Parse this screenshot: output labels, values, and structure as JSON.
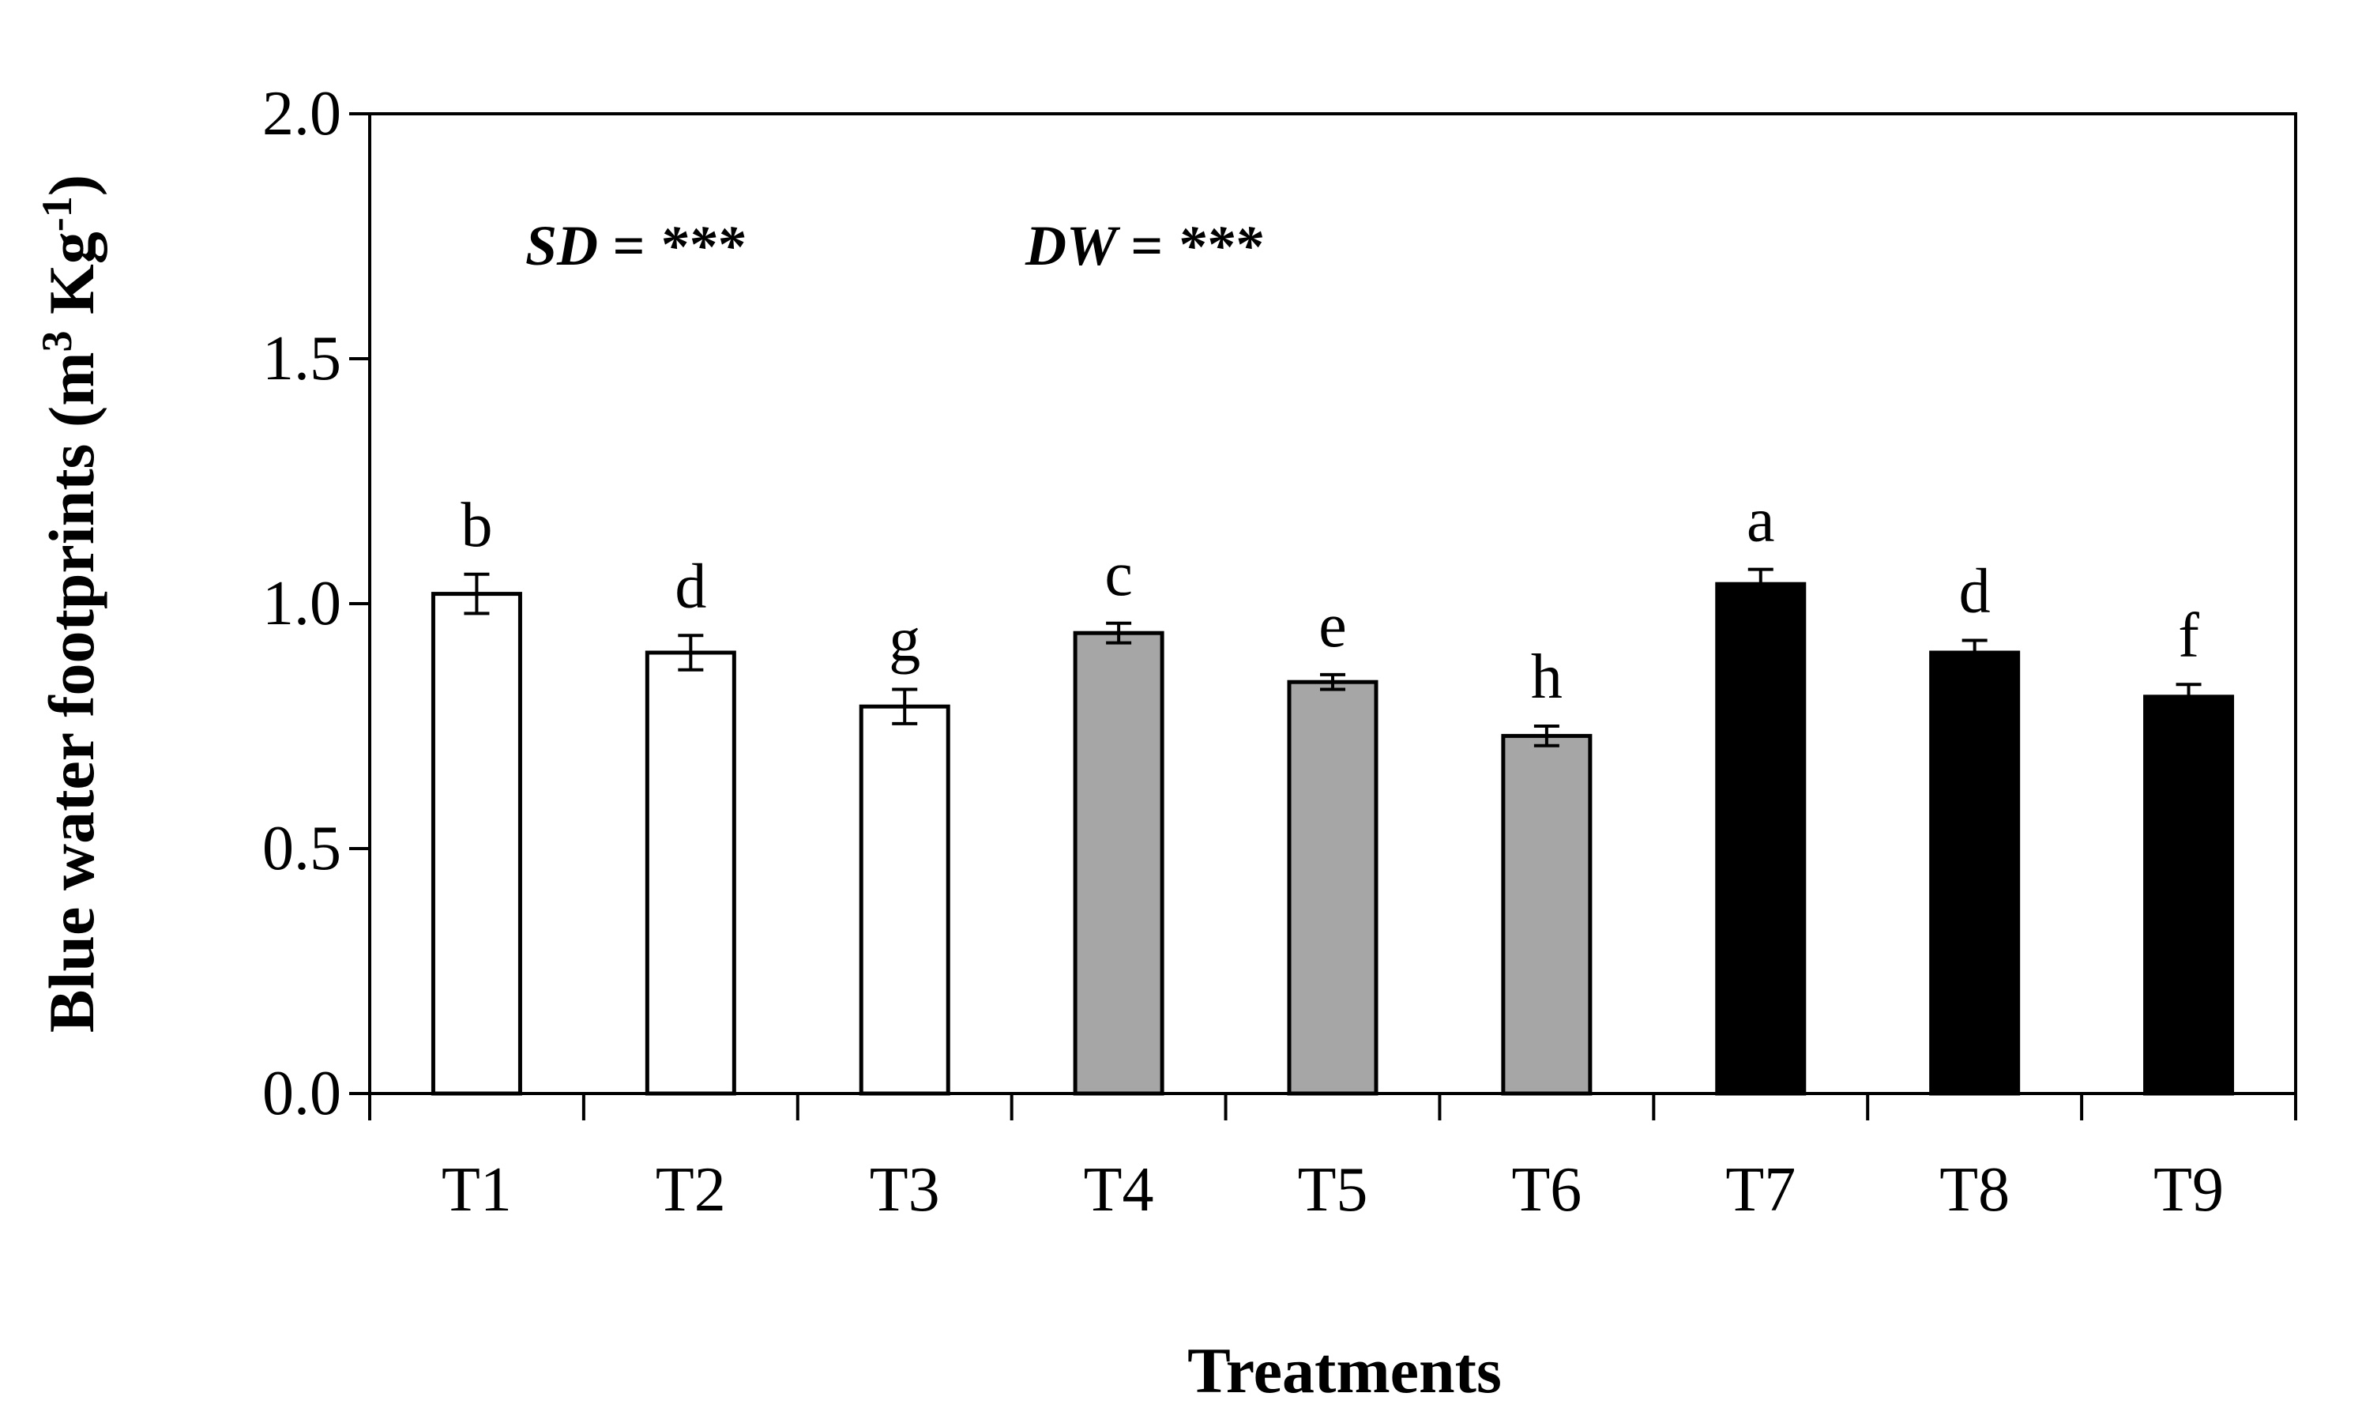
{
  "chart_data": {
    "type": "bar",
    "title": "",
    "xlabel": "Treatments",
    "ylabel": {
      "main": "Blue water footprints (m",
      "sup1": "3",
      "mid": " Kg",
      "sup2": "-1",
      "end": ")"
    },
    "ylim": [
      0,
      2.0
    ],
    "yticks": [
      "0.0",
      "0.5",
      "1.0",
      "1.5",
      "2.0"
    ],
    "ytick_values": [
      0,
      0.5,
      1.0,
      1.5,
      2.0
    ],
    "grid": false,
    "categories": [
      "T1",
      "T2",
      "T3",
      "T4",
      "T5",
      "T6",
      "T7",
      "T8",
      "T9"
    ],
    "values": [
      1.02,
      0.9,
      0.79,
      0.94,
      0.84,
      0.73,
      1.04,
      0.9,
      0.81
    ],
    "errors": [
      0.04,
      0.035,
      0.035,
      0.02,
      0.015,
      0.02,
      0.03,
      0.025,
      0.025
    ],
    "letters": [
      "b",
      "d",
      "g",
      "c",
      "e",
      "h",
      "a",
      "d",
      "f"
    ],
    "fills": [
      "#ffffff",
      "#ffffff",
      "#ffffff",
      "#a6a6a6",
      "#a6a6a6",
      "#a6a6a6",
      "#000000",
      "#000000",
      "#000000"
    ],
    "annotations": [
      {
        "label": "SD",
        "value": " = ***"
      },
      {
        "label": "DW",
        "value": " = ***"
      }
    ]
  }
}
